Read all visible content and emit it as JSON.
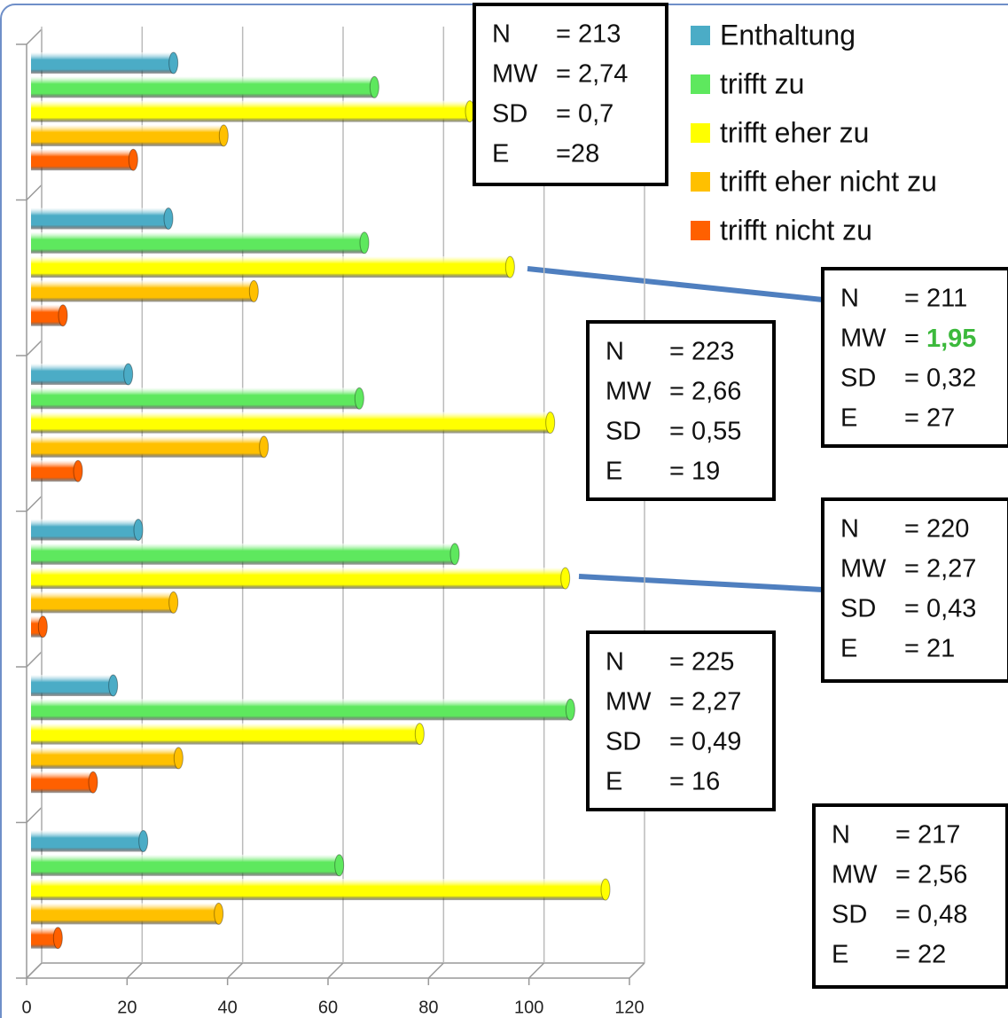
{
  "chart_data": {
    "type": "bar",
    "orientation": "horizontal",
    "categories": [
      null,
      null,
      null,
      null,
      null,
      null
    ],
    "series": [
      {
        "name": "Enthaltung",
        "color": "#4bacc6",
        "values": [
          28,
          27,
          19,
          21,
          16,
          22
        ]
      },
      {
        "name": "trifft zu",
        "color": "#5ee85e",
        "values": [
          68,
          66,
          65,
          84,
          107,
          61
        ]
      },
      {
        "name": "trifft eher zu",
        "color": "#ffff00",
        "values": [
          87,
          95,
          103,
          106,
          77,
          114
        ]
      },
      {
        "name": "trifft eher nicht zu",
        "color": "#ffc000",
        "values": [
          38,
          44,
          46,
          28,
          29,
          37
        ]
      },
      {
        "name": "trifft nicht zu",
        "color": "#ff6000",
        "values": [
          20,
          6,
          9,
          2,
          12,
          5
        ]
      }
    ],
    "xlim": [
      0,
      120
    ],
    "xticks": [
      0,
      20,
      40,
      60,
      80,
      100,
      120
    ],
    "grid": true,
    "legend": "top-right",
    "annotations": [
      {
        "rows": [
          [
            "N",
            "= 213"
          ],
          [
            "MW",
            "= 2,74"
          ],
          [
            "SD",
            "= 0,7"
          ],
          [
            "E",
            "=28"
          ]
        ]
      },
      {
        "rows": [
          [
            "N",
            "= 211"
          ],
          [
            "MW",
            "=",
            "1,95"
          ],
          [
            "SD",
            "= 0,32"
          ],
          [
            "E",
            "= 27"
          ]
        ],
        "highlight_color": "#3cb93c"
      },
      {
        "rows": [
          [
            "N",
            "= 223"
          ],
          [
            "MW",
            "= 2,66"
          ],
          [
            "SD",
            "= 0,55"
          ],
          [
            "E",
            "= 19"
          ]
        ]
      },
      {
        "rows": [
          [
            "N",
            "= 220"
          ],
          [
            "MW",
            "= 2,27"
          ],
          [
            "SD",
            "= 0,43"
          ],
          [
            "E",
            "= 21"
          ]
        ]
      },
      {
        "rows": [
          [
            "N",
            "= 225"
          ],
          [
            "MW",
            "= 2,27"
          ],
          [
            "SD",
            "= 0,49"
          ],
          [
            "E",
            "= 16"
          ]
        ]
      },
      {
        "rows": [
          [
            "N",
            "= 217"
          ],
          [
            "MW",
            "= 2,56"
          ],
          [
            "SD",
            "= 0,48"
          ],
          [
            "E",
            "= 22"
          ]
        ]
      }
    ]
  }
}
